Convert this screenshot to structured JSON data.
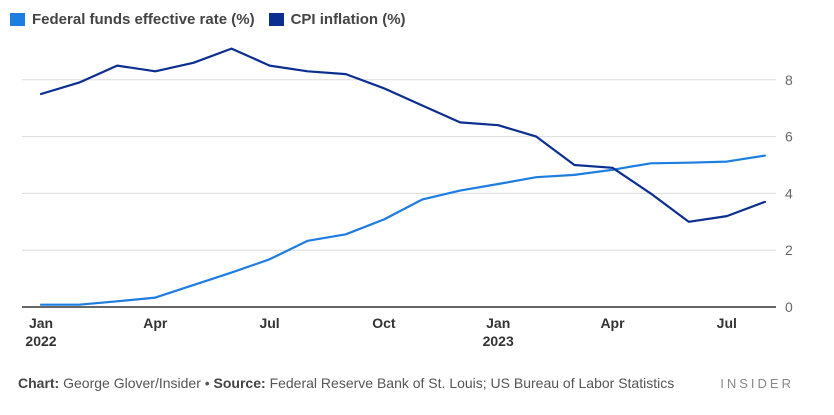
{
  "legend": [
    {
      "label": "Federal funds effective rate (%)",
      "color": "#1d7de0"
    },
    {
      "label": "CPI inflation (%)",
      "color": "#0b2e8f"
    }
  ],
  "footer": {
    "chart_label": "Chart:",
    "chart_value": "George Glover/Insider",
    "bullet": "•",
    "source_label": "Source:",
    "source_value": "Federal Reserve Bank of St. Louis; US Bureau of Labor Statistics"
  },
  "brand": "INSIDER",
  "chart_data": {
    "type": "line",
    "x": [
      "2022-01",
      "2022-02",
      "2022-03",
      "2022-04",
      "2022-05",
      "2022-06",
      "2022-07",
      "2022-08",
      "2022-09",
      "2022-10",
      "2022-11",
      "2022-12",
      "2023-01",
      "2023-02",
      "2023-03",
      "2023-04",
      "2023-05",
      "2023-06",
      "2023-07",
      "2023-08"
    ],
    "series": [
      {
        "name": "Federal funds effective rate (%)",
        "color": "#1d7de0",
        "values": [
          0.08,
          0.08,
          0.2,
          0.33,
          0.77,
          1.21,
          1.68,
          2.33,
          2.56,
          3.08,
          3.78,
          4.1,
          4.33,
          4.57,
          4.65,
          4.83,
          5.06,
          5.08,
          5.12,
          5.33
        ]
      },
      {
        "name": "CPI inflation (%)",
        "color": "#0b2e8f",
        "values": [
          7.5,
          7.9,
          8.5,
          8.3,
          8.6,
          9.1,
          8.5,
          8.3,
          8.2,
          7.7,
          7.1,
          6.5,
          6.4,
          6.0,
          5.0,
          4.9,
          4.0,
          3.0,
          3.2,
          3.7
        ]
      }
    ],
    "x_ticks": [
      {
        "index": 0,
        "label": "Jan",
        "sublabel": "2022"
      },
      {
        "index": 3,
        "label": "Apr",
        "sublabel": ""
      },
      {
        "index": 6,
        "label": "Jul",
        "sublabel": ""
      },
      {
        "index": 9,
        "label": "Oct",
        "sublabel": ""
      },
      {
        "index": 12,
        "label": "Jan",
        "sublabel": "2023"
      },
      {
        "index": 15,
        "label": "Apr",
        "sublabel": ""
      },
      {
        "index": 18,
        "label": "Jul",
        "sublabel": ""
      }
    ],
    "y_ticks": [
      0,
      2,
      4,
      6,
      8
    ],
    "ylim": [
      0,
      8
    ],
    "grid": true,
    "legend_position": "top-left"
  }
}
